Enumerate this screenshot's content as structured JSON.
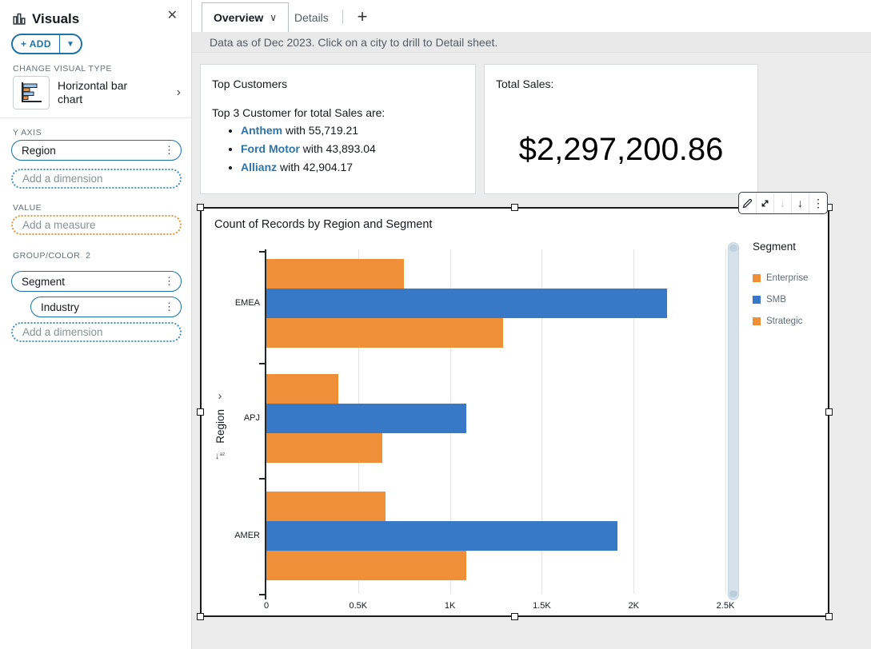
{
  "colors": {
    "accent_blue": "#1d73a8",
    "link_blue": "#2e74a8",
    "bar_orange": "#ef9038",
    "bar_blue": "#3779c7"
  },
  "icons": {
    "close": "✕",
    "caret_down": "▼",
    "chevron_right": "›",
    "kebab": "⋮",
    "chevron_down": "∨",
    "plus": "+",
    "down_arrow": "↓",
    "sort_letters": "az"
  },
  "sidebar": {
    "title": "Visuals",
    "add_button_label": "+ ADD",
    "change_visual_type": {
      "label": "CHANGE VISUAL TYPE",
      "value": "Horizontal bar chart"
    },
    "y_axis": {
      "label": "Y AXIS",
      "fields": [
        "Region"
      ],
      "placeholder": "Add a dimension"
    },
    "value": {
      "label": "VALUE",
      "placeholder": "Add a measure"
    },
    "group_color": {
      "label": "GROUP/COLOR",
      "count": "2",
      "fields": [
        "Segment",
        "Industry"
      ],
      "placeholder": "Add a dimension"
    }
  },
  "tabs": {
    "items": [
      "Overview",
      "Details"
    ],
    "active": "Overview",
    "add_label": "+"
  },
  "info_bar": "Data as of Dec 2023. Click on a city to drill to Detail sheet.",
  "cards": {
    "top_customers": {
      "title": "Top Customers",
      "intro": "Top 3 Customer for total Sales are:",
      "items": [
        {
          "name": "Anthem",
          "rest": " with 55,719.21"
        },
        {
          "name": "Ford Motor",
          "rest": " with 43,893.04"
        },
        {
          "name": "Allianz",
          "rest": " with 42,904.17"
        }
      ]
    },
    "total_sales": {
      "title": "Total Sales:",
      "value": "$2,297,200.86"
    }
  },
  "chart_data": {
    "type": "bar",
    "orientation": "horizontal",
    "title": "Count of Records by Region and Segment",
    "ylabel": "Region",
    "categories": [
      "EMEA",
      "APJ",
      "AMER"
    ],
    "series": [
      {
        "name": "Enterprise",
        "color": "#ef9038",
        "values": [
          750,
          390,
          650
        ]
      },
      {
        "name": "SMB",
        "color": "#3779c7",
        "values": [
          2180,
          1090,
          1910
        ]
      },
      {
        "name": "Strategic",
        "color": "#ef9038",
        "values": [
          1290,
          630,
          1090
        ]
      }
    ],
    "xlim": [
      0,
      2500
    ],
    "xticks": [
      {
        "value": 0,
        "label": "0"
      },
      {
        "value": 500,
        "label": "0.5K"
      },
      {
        "value": 1000,
        "label": "1K"
      },
      {
        "value": 1500,
        "label": "1.5K"
      },
      {
        "value": 2000,
        "label": "2K"
      },
      {
        "value": 2500,
        "label": "2.5K"
      }
    ],
    "grid": true,
    "legend_title": "Segment",
    "legend_position": "right"
  }
}
